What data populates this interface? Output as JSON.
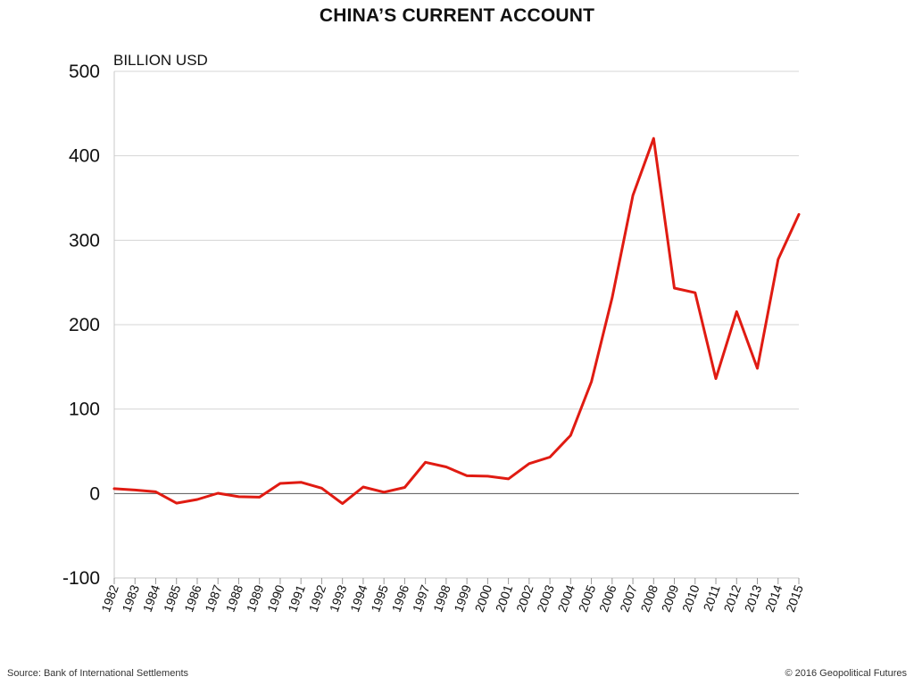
{
  "chart_data": {
    "type": "line",
    "title": "CHINA’S CURRENT ACCOUNT",
    "ylabel": "BILLION USD",
    "xlabel": "",
    "ylim": [
      -100,
      500
    ],
    "yticks": [
      -100,
      0,
      100,
      200,
      300,
      400,
      500
    ],
    "grid": true,
    "categories": [
      "1982",
      "1983",
      "1984",
      "1985",
      "1986",
      "1987",
      "1988",
      "1989",
      "1990",
      "1991",
      "1992",
      "1993",
      "1994",
      "1995",
      "1996",
      "1997",
      "1998",
      "1999",
      "2000",
      "2001",
      "2002",
      "2003",
      "2004",
      "2005",
      "2006",
      "2007",
      "2008",
      "2009",
      "2010",
      "2011",
      "2012",
      "2013",
      "2014",
      "2015"
    ],
    "series": [
      {
        "values": [
          5.7,
          4.2,
          2.0,
          -11.4,
          -7.0,
          0.3,
          -3.8,
          -4.3,
          12.0,
          13.3,
          6.4,
          -11.9,
          7.7,
          1.6,
          7.2,
          37.0,
          31.5,
          21.1,
          20.5,
          17.4,
          35.4,
          43.1,
          68.9,
          132.4,
          231.8,
          353.2,
          420.6,
          243.3,
          237.8,
          136.1,
          215.4,
          148.2,
          277.4,
          330.6
        ],
        "color": "#e01b12"
      }
    ]
  },
  "footer": {
    "source": "Source: Bank of International Settlements",
    "copyright": "© 2016 Geopolitical Futures"
  }
}
